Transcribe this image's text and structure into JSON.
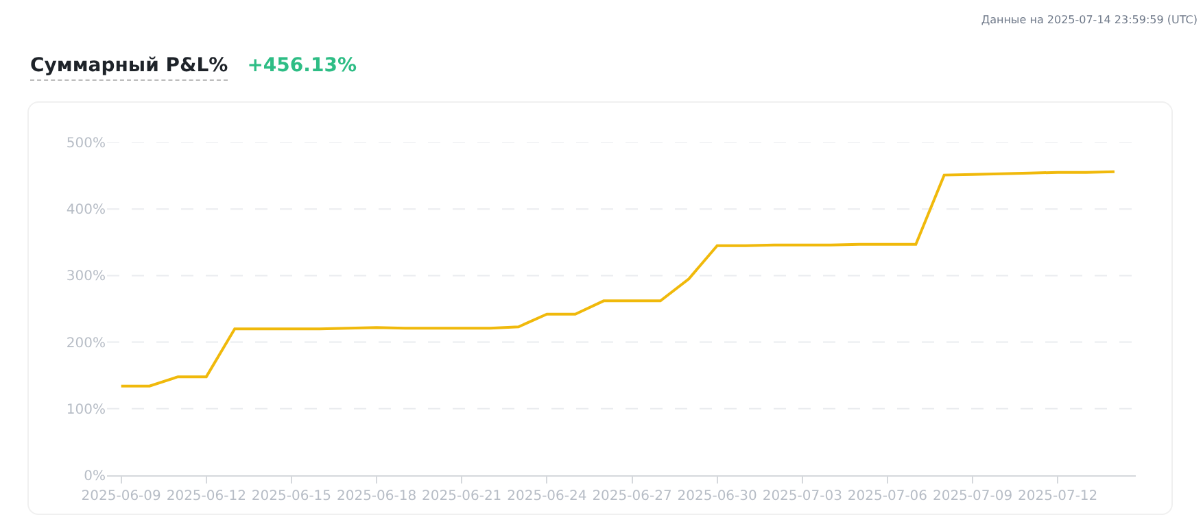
{
  "chart_data": {
    "type": "line",
    "title": "Суммарный P&L%",
    "subtitle": "+456.13%",
    "annotations": [
      "Данные на 2025-07-14 23:59:59 (UTC)"
    ],
    "x": [
      "2025-06-09",
      "2025-06-10",
      "2025-06-11",
      "2025-06-12",
      "2025-06-13",
      "2025-06-14",
      "2025-06-15",
      "2025-06-16",
      "2025-06-17",
      "2025-06-18",
      "2025-06-19",
      "2025-06-20",
      "2025-06-21",
      "2025-06-22",
      "2025-06-23",
      "2025-06-24",
      "2025-06-25",
      "2025-06-26",
      "2025-06-27",
      "2025-06-28",
      "2025-06-29",
      "2025-06-30",
      "2025-07-01",
      "2025-07-02",
      "2025-07-03",
      "2025-07-04",
      "2025-07-05",
      "2025-07-06",
      "2025-07-07",
      "2025-07-08",
      "2025-07-09",
      "2025-07-10",
      "2025-07-11",
      "2025-07-12",
      "2025-07-13",
      "2025-07-14"
    ],
    "series": [
      {
        "color": "#f0b90b",
        "values": [
          134,
          134,
          148,
          148,
          220,
          220,
          220,
          220,
          221,
          222,
          221,
          221,
          221,
          221,
          223,
          242,
          242,
          262,
          262,
          262,
          295,
          345,
          345,
          346,
          346,
          346,
          347,
          347,
          347,
          451,
          452,
          453,
          454,
          455,
          455,
          456
        ]
      }
    ],
    "xlim": [
      "2025-06-08T12:00",
      "2025-07-14T18:00"
    ],
    "xticks": [
      "2025-06-09",
      "2025-06-12",
      "2025-06-15",
      "2025-06-18",
      "2025-06-21",
      "2025-06-24",
      "2025-06-27",
      "2025-06-30",
      "2025-07-03",
      "2025-07-06",
      "2025-07-09",
      "2025-07-12"
    ],
    "ylim": [
      0,
      500
    ],
    "yticks": [
      {
        "value": 0,
        "label": "0%"
      },
      {
        "value": 100,
        "label": "100%"
      },
      {
        "value": 200,
        "label": "200%"
      },
      {
        "value": 300,
        "label": "300%"
      },
      {
        "value": 400,
        "label": "400%"
      },
      {
        "value": 500,
        "label": "500%"
      }
    ],
    "grid": "y",
    "marker": "none",
    "line_style": "solid"
  }
}
